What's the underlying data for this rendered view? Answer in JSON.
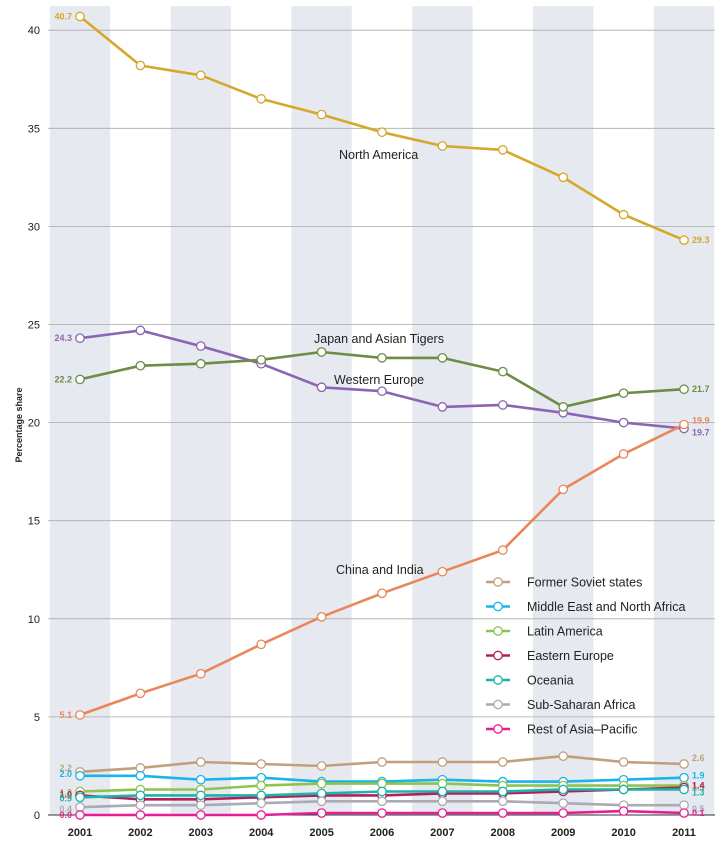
{
  "chart_data": {
    "type": "line",
    "ylabel": "Percentage share",
    "ylim": [
      0,
      41
    ],
    "yticks": [
      0,
      5,
      10,
      15,
      20,
      25,
      30,
      35,
      40
    ],
    "x": [
      "2001",
      "2002",
      "2003",
      "2004",
      "2005",
      "2006",
      "2007",
      "2008",
      "2009",
      "2010",
      "2011"
    ],
    "legend_placement": "lower-right",
    "grid": "alternating vertical bands with horizontal gridlines",
    "series": [
      {
        "name": "North America",
        "color": "#d4a82a",
        "values": [
          40.7,
          38.2,
          37.7,
          36.5,
          35.7,
          34.8,
          34.1,
          33.9,
          32.5,
          30.6,
          29.3
        ],
        "start_label": "40.7",
        "end_label": "29.3"
      },
      {
        "name": "Western Europe",
        "color": "#8c64b4",
        "values": [
          24.3,
          24.7,
          23.9,
          23.0,
          21.8,
          21.6,
          20.8,
          20.9,
          20.5,
          20.0,
          19.7
        ],
        "start_label": "24.3",
        "end_label": "19.7"
      },
      {
        "name": "Japan and Asian Tigers",
        "color": "#6e8c46",
        "values": [
          22.2,
          22.9,
          23.0,
          23.2,
          23.6,
          23.3,
          23.3,
          22.6,
          20.8,
          21.5,
          21.7
        ],
        "start_label": "22.2",
        "end_label": "21.7"
      },
      {
        "name": "China and India",
        "color": "#e8875a",
        "values": [
          5.1,
          6.2,
          7.2,
          8.7,
          10.1,
          11.3,
          12.4,
          13.5,
          16.6,
          18.4,
          19.9
        ],
        "start_label": "5.1",
        "end_label": "19.9"
      },
      {
        "name": "Former Soviet states",
        "color": "#c0a07a",
        "values": [
          2.2,
          2.4,
          2.7,
          2.6,
          2.5,
          2.7,
          2.7,
          2.7,
          3.0,
          2.7,
          2.6
        ],
        "start_label": "2.2",
        "end_label": "2.6"
      },
      {
        "name": "Middle East and North Africa",
        "color": "#1ab4e8",
        "values": [
          2.0,
          2.0,
          1.8,
          1.9,
          1.7,
          1.7,
          1.8,
          1.7,
          1.7,
          1.8,
          1.9
        ],
        "start_label": "2.0",
        "end_label": "1.9"
      },
      {
        "name": "Latin America",
        "color": "#8cc450",
        "values": [
          1.2,
          1.3,
          1.3,
          1.5,
          1.6,
          1.6,
          1.6,
          1.5,
          1.5,
          1.5,
          1.5
        ],
        "start_label": "1.2",
        "end_label": "1.5"
      },
      {
        "name": "Eastern Europe",
        "color": "#b41e5a",
        "values": [
          1.0,
          0.8,
          0.8,
          0.9,
          1.0,
          1.0,
          1.1,
          1.1,
          1.2,
          1.3,
          1.4
        ],
        "start_label": "1.0",
        "end_label": "1.4"
      },
      {
        "name": "Oceania",
        "color": "#1ab4a8",
        "values": [
          0.9,
          1.0,
          1.0,
          1.0,
          1.1,
          1.2,
          1.2,
          1.2,
          1.3,
          1.3,
          1.3
        ],
        "start_label": "0.9",
        "end_label": "1.3"
      },
      {
        "name": "Sub-Saharan Africa",
        "color": "#aaaab4",
        "values": [
          0.4,
          0.5,
          0.5,
          0.6,
          0.7,
          0.7,
          0.7,
          0.7,
          0.6,
          0.5,
          0.5
        ],
        "start_label": "0.4",
        "end_label": "0.5"
      },
      {
        "name": "Rest of Asia–Pacific",
        "color": "#e61e96",
        "values": [
          0.0,
          0.0,
          0.0,
          0.0,
          0.1,
          0.1,
          0.1,
          0.1,
          0.1,
          0.2,
          0.1
        ],
        "start_label": "0.0",
        "end_label": "0.1"
      }
    ],
    "annotations": [
      "North America",
      "Japan and Asian Tigers",
      "Western Europe",
      "China and India"
    ],
    "legend": [
      "Former Soviet states",
      "Middle East and North Africa",
      "Latin America",
      "Eastern Europe",
      "Oceania",
      "Sub-Saharan Africa",
      "Rest of Asia–Pacific"
    ]
  }
}
